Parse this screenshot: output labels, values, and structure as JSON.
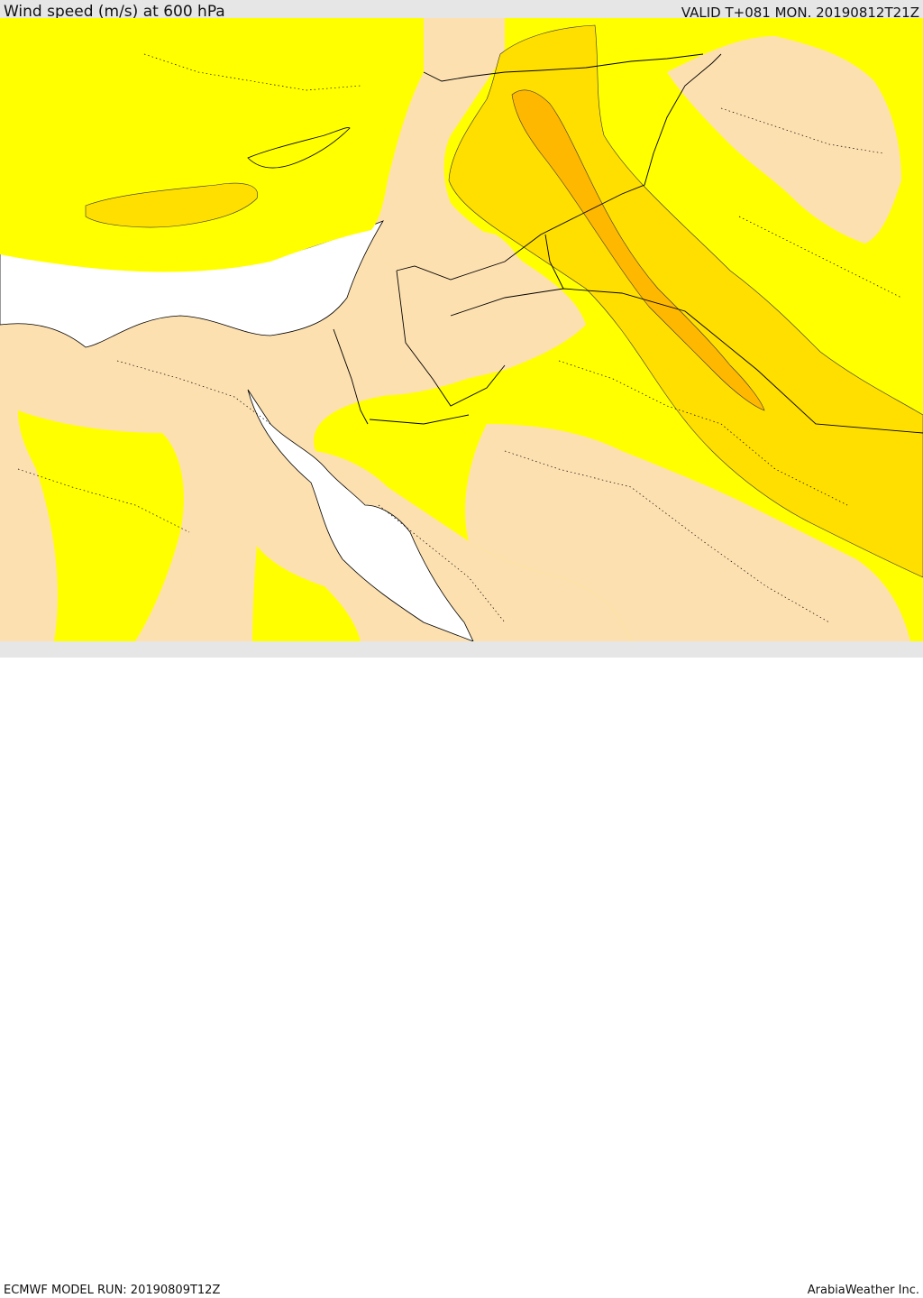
{
  "header": {
    "title": "Wind speed (m/s) at 600 hPa",
    "valid_time": "VALID T+081 MON. 20190812T21Z"
  },
  "footer": {
    "model_run": "ECMWF MODEL RUN: 20190809T12Z",
    "provider": "ArabiaWeather Inc."
  },
  "map": {
    "field": "wind speed",
    "level": "600 hPa",
    "colors": {
      "sea": "#ffffff",
      "band_lowest": "#fde0b0",
      "band_low": "#ffff00",
      "band_mid": "#ffdf00",
      "band_high": "#ffb800",
      "borders": "#000000"
    },
    "features": [
      "coastlines",
      "country-borders",
      "province-borders-dotted",
      "wind-speed-bands"
    ]
  }
}
